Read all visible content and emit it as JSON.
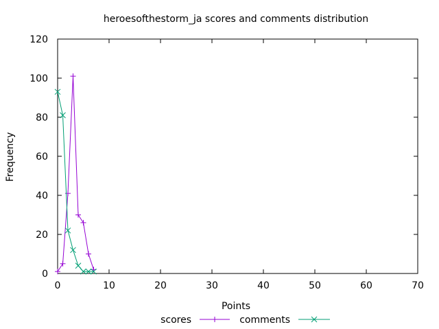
{
  "chart_data": {
    "type": "line",
    "title": "heroesofthestorm_ja scores and comments distribution",
    "xlabel": "Points",
    "ylabel": "Frequency",
    "xlim": [
      0,
      70
    ],
    "ylim": [
      0,
      120
    ],
    "xticks": [
      "0",
      "10",
      "20",
      "30",
      "40",
      "50",
      "60",
      "70"
    ],
    "yticks": [
      "0",
      "20",
      "40",
      "60",
      "80",
      "100",
      "120"
    ],
    "grid": false,
    "legend_position": "bottom-center",
    "series": [
      {
        "name": "scores",
        "color": "#9400d3",
        "marker": "plus",
        "x": [
          0,
          1,
          2,
          3,
          4,
          5,
          6,
          7
        ],
        "y": [
          1,
          5,
          41,
          101,
          30,
          26,
          10,
          2
        ]
      },
      {
        "name": "comments",
        "color": "#009e73",
        "marker": "cross",
        "x": [
          0,
          1,
          2,
          3,
          4,
          5,
          6,
          7
        ],
        "y": [
          93,
          81,
          22,
          12,
          4,
          1,
          1,
          1
        ]
      }
    ]
  }
}
